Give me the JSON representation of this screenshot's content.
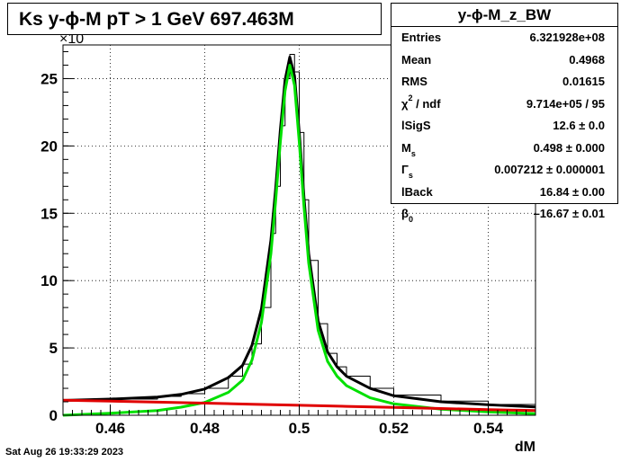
{
  "title": "Ks y-ϕ-M pT > 1 GeV  697.463M",
  "stats": {
    "name": "y-ϕ-M_z_BW",
    "rows": [
      {
        "label": "Entries",
        "value": "6.321928e+08"
      },
      {
        "label": "Mean",
        "value": "0.4968"
      },
      {
        "label": "RMS",
        "value": "0.01615"
      },
      {
        "label": "χ² / ndf",
        "value": "9.714e+05 / 95"
      },
      {
        "label": "lSigS",
        "value": "12.6 ± 0.0"
      },
      {
        "label": "M_s",
        "value": "0.498 ± 0.000"
      },
      {
        "label": "Γ_s",
        "value": "0.007212 ± 0.000001"
      },
      {
        "label": "lBack",
        "value": "16.84 ± 0.00"
      },
      {
        "label": "β_0",
        "value": "–16.67 ± 0.01"
      }
    ]
  },
  "timestamp": "Sat Aug 26 19:33:29 2023",
  "chart_data": {
    "type": "line",
    "xlabel": "dM",
    "ylabel": "",
    "y_multiplier_label": "×10",
    "xlim": [
      0.45,
      0.55
    ],
    "ylim": [
      0,
      27.5
    ],
    "x_ticks": [
      0.46,
      0.48,
      0.5,
      0.52,
      0.54
    ],
    "x_tick_labels": [
      "0.46",
      "0.48",
      "0.5",
      "0.52",
      "0.54"
    ],
    "y_ticks": [
      0,
      5,
      10,
      15,
      20,
      25
    ],
    "y_tick_labels": [
      "0",
      "5",
      "10",
      "15",
      "20",
      "25"
    ],
    "grid": true,
    "colors": {
      "histogram": "#000000",
      "total_fit": "#000000",
      "signal_fit": "#00e000",
      "background_fit": "#e00000"
    },
    "series": [
      {
        "type": "step",
        "points": [
          [
            0.45,
            1.05
          ],
          [
            0.46,
            1.2
          ],
          [
            0.47,
            1.4
          ],
          [
            0.475,
            1.6
          ],
          [
            0.48,
            2.0
          ],
          [
            0.485,
            2.9
          ],
          [
            0.488,
            3.8
          ],
          [
            0.49,
            5.3
          ],
          [
            0.492,
            8.0
          ],
          [
            0.494,
            13.5
          ],
          [
            0.495,
            17.0
          ],
          [
            0.496,
            21.5
          ],
          [
            0.497,
            25.0
          ],
          [
            0.498,
            26.8
          ],
          [
            0.499,
            25.5
          ],
          [
            0.5,
            21.0
          ],
          [
            0.501,
            16.0
          ],
          [
            0.502,
            11.5
          ],
          [
            0.504,
            6.8
          ],
          [
            0.506,
            4.6
          ],
          [
            0.508,
            3.6
          ],
          [
            0.51,
            2.9
          ],
          [
            0.515,
            2.0
          ],
          [
            0.52,
            1.5
          ],
          [
            0.53,
            1.05
          ],
          [
            0.54,
            0.8
          ],
          [
            0.55,
            0.65
          ]
        ]
      },
      {
        "points": [
          [
            0.45,
            1.1
          ],
          [
            0.46,
            1.2
          ],
          [
            0.47,
            1.35
          ],
          [
            0.475,
            1.55
          ],
          [
            0.48,
            1.95
          ],
          [
            0.485,
            2.8
          ],
          [
            0.488,
            3.7
          ],
          [
            0.49,
            5.2
          ],
          [
            0.492,
            7.9
          ],
          [
            0.494,
            13.0
          ],
          [
            0.495,
            16.8
          ],
          [
            0.496,
            21.2
          ],
          [
            0.497,
            24.9
          ],
          [
            0.498,
            26.6
          ],
          [
            0.499,
            25.2
          ],
          [
            0.5,
            21.0
          ],
          [
            0.501,
            16.2
          ],
          [
            0.502,
            12.0
          ],
          [
            0.504,
            7.0
          ],
          [
            0.506,
            4.7
          ],
          [
            0.508,
            3.6
          ],
          [
            0.51,
            2.9
          ],
          [
            0.515,
            2.0
          ],
          [
            0.52,
            1.45
          ],
          [
            0.53,
            1.0
          ],
          [
            0.54,
            0.78
          ],
          [
            0.55,
            0.62
          ]
        ]
      },
      {
        "points": [
          [
            0.45,
            0.0
          ],
          [
            0.46,
            0.15
          ],
          [
            0.47,
            0.35
          ],
          [
            0.475,
            0.6
          ],
          [
            0.48,
            0.95
          ],
          [
            0.485,
            1.7
          ],
          [
            0.488,
            2.6
          ],
          [
            0.49,
            4.1
          ],
          [
            0.492,
            6.9
          ],
          [
            0.494,
            12.0
          ],
          [
            0.495,
            15.9
          ],
          [
            0.496,
            20.3
          ],
          [
            0.497,
            24.1
          ],
          [
            0.498,
            26.0
          ],
          [
            0.499,
            24.5
          ],
          [
            0.5,
            20.3
          ],
          [
            0.501,
            15.5
          ],
          [
            0.502,
            11.3
          ],
          [
            0.504,
            6.3
          ],
          [
            0.506,
            4.0
          ],
          [
            0.508,
            2.9
          ],
          [
            0.51,
            2.2
          ],
          [
            0.515,
            1.3
          ],
          [
            0.52,
            0.85
          ],
          [
            0.53,
            0.45
          ],
          [
            0.54,
            0.25
          ],
          [
            0.55,
            0.12
          ]
        ]
      },
      {
        "points": [
          [
            0.45,
            1.12
          ],
          [
            0.46,
            1.05
          ],
          [
            0.47,
            0.98
          ],
          [
            0.48,
            0.9
          ],
          [
            0.49,
            0.82
          ],
          [
            0.5,
            0.74
          ],
          [
            0.51,
            0.66
          ],
          [
            0.52,
            0.58
          ],
          [
            0.53,
            0.5
          ],
          [
            0.54,
            0.42
          ],
          [
            0.55,
            0.35
          ]
        ]
      }
    ]
  }
}
